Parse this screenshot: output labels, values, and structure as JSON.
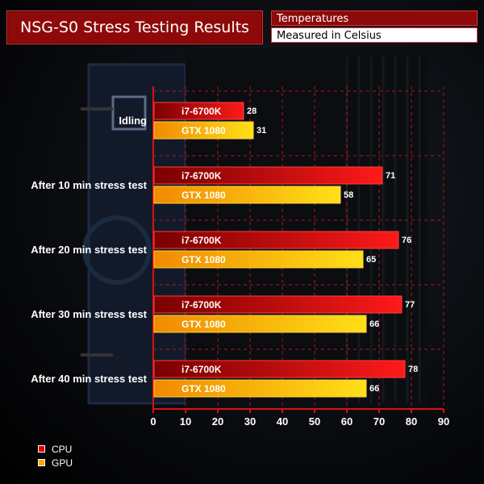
{
  "title": "NSG-S0 Stress Testing Results",
  "subtitle_1": "Temperatures",
  "subtitle_2": "Measured in Celsius",
  "colors": {
    "cpu": "#e00000",
    "gpu": "#f5a800",
    "accent": "#8e0a0a",
    "grid": "#c02020"
  },
  "chart_data": {
    "type": "bar",
    "orientation": "horizontal",
    "categories": [
      "Idling",
      "After 10 min stress test",
      "After 20 min stress test",
      "After 30 min stress test",
      "After 40 min stress test"
    ],
    "series": [
      {
        "name": "CPU",
        "bar_label": "i7-6700K",
        "values": [
          28,
          71,
          76,
          77,
          78
        ]
      },
      {
        "name": "GPU",
        "bar_label": "GTX 1080",
        "values": [
          31,
          58,
          65,
          66,
          66
        ]
      }
    ],
    "xlim": [
      0,
      90
    ],
    "xticks": [
      0,
      10,
      20,
      30,
      40,
      50,
      60,
      70,
      80,
      90
    ],
    "grid": true,
    "legend_position": "bottom-left"
  },
  "legend": [
    {
      "label": "CPU"
    },
    {
      "label": "GPU"
    }
  ]
}
